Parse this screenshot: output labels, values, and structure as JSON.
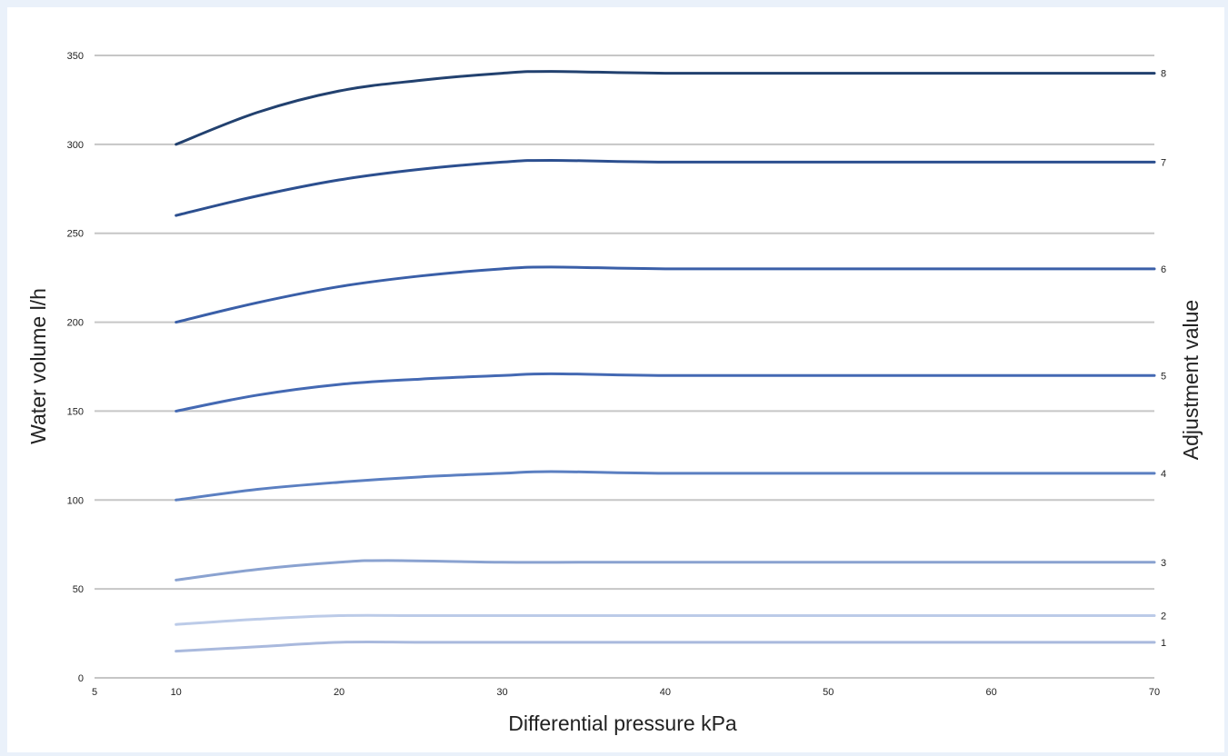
{
  "chart_data": {
    "type": "line",
    "xlabel": "Differential pressure kPa",
    "ylabel": "Water volume l/h",
    "y2label": "Adjustment value",
    "xlim": [
      5,
      70
    ],
    "ylim": [
      0,
      350
    ],
    "x_ticks": [
      5,
      10,
      20,
      30,
      40,
      50,
      60,
      70
    ],
    "y_ticks": [
      0,
      50,
      100,
      150,
      200,
      250,
      300,
      350
    ],
    "grid": "horizontal",
    "legend": "series labels at right end of lines",
    "series": [
      {
        "name": "1",
        "color": "#a9b9dd",
        "x": [
          10,
          15,
          20,
          25,
          30,
          35,
          40,
          50,
          60,
          70
        ],
        "y": [
          15,
          17.5,
          20,
          20,
          20,
          20,
          20,
          20,
          20,
          20
        ]
      },
      {
        "name": "2",
        "color": "#bccbe8",
        "x": [
          10,
          15,
          20,
          25,
          30,
          35,
          40,
          50,
          60,
          70
        ],
        "y": [
          30,
          33,
          35,
          35,
          35,
          35,
          35,
          35,
          35,
          35
        ]
      },
      {
        "name": "3",
        "color": "#8aa2d0",
        "x": [
          10,
          15,
          20,
          23,
          30,
          35,
          40,
          50,
          60,
          70
        ],
        "y": [
          55,
          61,
          65,
          66,
          65,
          65,
          65,
          65,
          65,
          65
        ]
      },
      {
        "name": "4",
        "color": "#5b7fc1",
        "x": [
          10,
          15,
          20,
          25,
          30,
          33,
          40,
          50,
          60,
          70
        ],
        "y": [
          100,
          106,
          110,
          113,
          115,
          116,
          115,
          115,
          115,
          115
        ]
      },
      {
        "name": "5",
        "color": "#4469b3",
        "x": [
          10,
          15,
          20,
          25,
          30,
          33,
          40,
          50,
          60,
          70
        ],
        "y": [
          150,
          159,
          165,
          168,
          170,
          171,
          170,
          170,
          170,
          170
        ]
      },
      {
        "name": "6",
        "color": "#3a5fa8",
        "x": [
          10,
          15,
          20,
          25,
          30,
          33,
          40,
          50,
          60,
          70
        ],
        "y": [
          200,
          211,
          220,
          226,
          230,
          231,
          230,
          230,
          230,
          230
        ]
      },
      {
        "name": "7",
        "color": "#2c4f8f",
        "x": [
          10,
          15,
          20,
          25,
          30,
          33,
          40,
          50,
          60,
          70
        ],
        "y": [
          260,
          271,
          280,
          286,
          290,
          291,
          290,
          290,
          290,
          290
        ]
      },
      {
        "name": "8",
        "color": "#22416f",
        "x": [
          10,
          15,
          20,
          25,
          30,
          33,
          40,
          50,
          60,
          70
        ],
        "y": [
          300,
          318,
          330,
          336,
          340,
          341,
          340,
          340,
          340,
          340
        ]
      }
    ]
  }
}
